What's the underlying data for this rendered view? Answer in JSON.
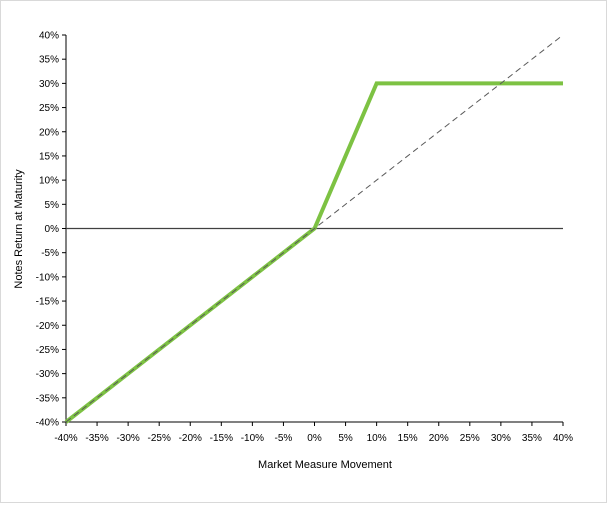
{
  "chart_data": {
    "type": "line",
    "title": "",
    "xlabel": "Market Measure Movement",
    "ylabel": "Notes Return at Maturity",
    "xlim": [
      -40,
      40
    ],
    "ylim": [
      -40,
      40
    ],
    "x_ticks": [
      -40,
      -35,
      -30,
      -25,
      -20,
      -15,
      -10,
      -5,
      0,
      5,
      10,
      15,
      20,
      25,
      30,
      35,
      40
    ],
    "y_ticks": [
      -40,
      -35,
      -30,
      -25,
      -20,
      -15,
      -10,
      -5,
      0,
      5,
      10,
      15,
      20,
      25,
      30,
      35,
      40
    ],
    "tick_format": "percent",
    "grid": false,
    "legend": "none",
    "series": [
      {
        "color": "#7dc243",
        "style": "solid",
        "x": [
          -40,
          0,
          10,
          40
        ],
        "y": [
          -40,
          0,
          30,
          30
        ]
      },
      {
        "color": "#595959",
        "style": "dashed",
        "x": [
          -40,
          40
        ],
        "y": [
          -40,
          40
        ]
      }
    ],
    "reference_lines": [
      {
        "axis": "y",
        "value": 0,
        "color": "#404040"
      }
    ]
  }
}
